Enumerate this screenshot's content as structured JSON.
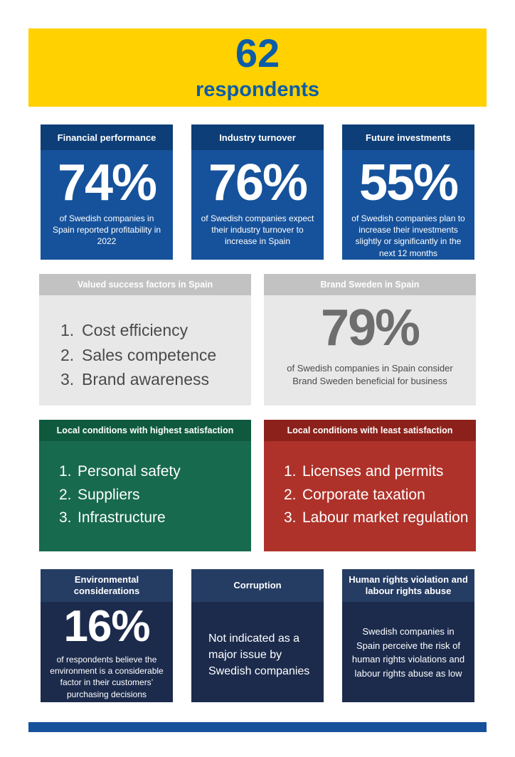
{
  "colors": {
    "yellow": "#FFD100",
    "banner_text": "#0D5CA8",
    "blue_body": "#16529B",
    "blue_header": "#0D3E77",
    "gray_body": "#E8E8E8",
    "gray_header": "#C2C2C2",
    "gray_text": "#4A4A4A",
    "gray_value": "#6E6E6E",
    "green_body": "#176A4E",
    "green_header": "#0F5A3E",
    "red_body": "#AE322A",
    "red_header": "#8C211B",
    "navy_body": "#1C2B4C",
    "navy_header": "#253C63",
    "footer": "#16529B"
  },
  "banner": {
    "number": "62",
    "label": "respondents"
  },
  "stats": [
    {
      "title": "Financial performance",
      "value": "74%",
      "caption": "of Swedish companies in Spain reported profitability in 2022"
    },
    {
      "title": "Industry turnover",
      "value": "76%",
      "caption": "of Swedish companies expect their industry turnover to increase in Spain"
    },
    {
      "title": "Future investments",
      "value": "55%",
      "caption": "of Swedish companies plan to increase their investments slightly or significantly in the next 12 months"
    }
  ],
  "success_factors": {
    "title": "Valued success factors in Spain",
    "items": [
      {
        "num": "1.",
        "text": "Cost efficiency"
      },
      {
        "num": "2.",
        "text": "Sales competence"
      },
      {
        "num": "3.",
        "text": "Brand awareness"
      }
    ]
  },
  "brand_sweden": {
    "title": "Brand Sweden in Spain",
    "value": "79%",
    "caption": "of Swedish companies in Spain consider Brand Sweden beneficial for business"
  },
  "highest_satisfaction": {
    "title": "Local conditions with highest satisfaction",
    "items": [
      {
        "num": "1.",
        "text": "Personal safety"
      },
      {
        "num": "2.",
        "text": "Suppliers"
      },
      {
        "num": "3.",
        "text": "Infrastructure"
      }
    ]
  },
  "least_satisfaction": {
    "title": "Local conditions with least satisfaction",
    "items": [
      {
        "num": "1.",
        "text": "Licenses and permits"
      },
      {
        "num": "2.",
        "text": "Corporate taxation"
      },
      {
        "num": "3.",
        "text": "Labour market regulation"
      }
    ]
  },
  "environment": {
    "title": "Environmental considerations",
    "value": "16%",
    "caption": "of respondents believe the environment is a considerable factor in their customers’ purchasing decisions"
  },
  "corruption": {
    "title": "Corruption",
    "body": "Not indicated as a major issue by Swedish companies"
  },
  "human_rights": {
    "title": "Human rights violation and labour rights abuse",
    "body": "Swedish companies in Spain perceive the risk of human rights violations and labour rights abuse as low"
  }
}
